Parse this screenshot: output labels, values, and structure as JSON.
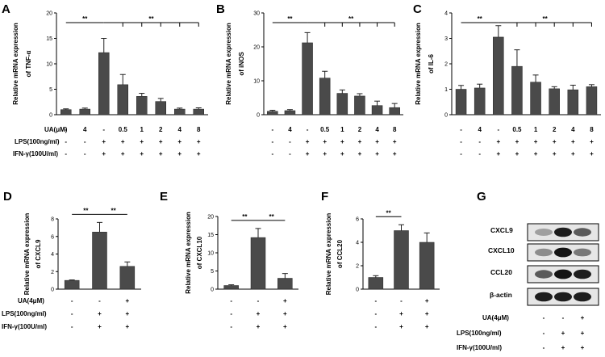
{
  "figure": {
    "panels": [
      "A",
      "B",
      "C",
      "D",
      "E",
      "F",
      "G"
    ],
    "row_labels": {
      "ua": "UA(μM)",
      "ua4": "UA(4μM)",
      "lps": "LPS(100ng/ml)",
      "ifn": "IFN-γ(100U/ml)"
    },
    "top_conditions": {
      "ua": [
        "-",
        "4",
        "-",
        "0.5",
        "1",
        "2",
        "4",
        "8"
      ],
      "lps": [
        "-",
        "-",
        "+",
        "+",
        "+",
        "+",
        "+",
        "+"
      ],
      "ifn": [
        "-",
        "-",
        "+",
        "+",
        "+",
        "+",
        "+",
        "+"
      ]
    },
    "bottom_conditions": {
      "ua": [
        "-",
        "-",
        "+"
      ],
      "lps": [
        "-",
        "+",
        "+"
      ],
      "ifn": [
        "-",
        "+",
        "+"
      ]
    },
    "significance": "**",
    "western_blot": {
      "bands": [
        "CXCL9",
        "CXCL10",
        "CCL20",
        "β-actin"
      ],
      "intensity": [
        [
          0.25,
          0.9,
          0.6
        ],
        [
          0.35,
          0.95,
          0.45
        ],
        [
          0.6,
          0.95,
          0.9
        ],
        [
          0.9,
          0.9,
          0.9
        ]
      ]
    }
  },
  "chart_data": [
    {
      "panel": "A",
      "type": "bar",
      "ylabel": "Relative mRNA expression of TNF-α",
      "ylim": [
        0,
        20
      ],
      "yticks": [
        0,
        5,
        10,
        15,
        20
      ],
      "values": [
        1.0,
        1.1,
        12.2,
        5.9,
        3.6,
        2.6,
        1.1,
        1.1
      ],
      "errors": [
        0.15,
        0.2,
        2.8,
        2.0,
        0.6,
        0.6,
        0.2,
        0.25
      ]
    },
    {
      "panel": "B",
      "type": "bar",
      "ylabel": "Relative mRNA expression of iNOS",
      "ylim": [
        0,
        30
      ],
      "yticks": [
        0,
        10,
        20,
        30
      ],
      "values": [
        1.0,
        1.2,
        21.2,
        10.8,
        6.3,
        5.5,
        2.7,
        2.1
      ],
      "errors": [
        0.3,
        0.3,
        3.0,
        2.0,
        1.0,
        0.7,
        1.3,
        1.2
      ]
    },
    {
      "panel": "C",
      "type": "bar",
      "ylabel": "Relative mRNA expression of IL-6",
      "ylim": [
        0,
        4
      ],
      "yticks": [
        0,
        1,
        2,
        3,
        4
      ],
      "values": [
        1.0,
        1.05,
        3.05,
        1.9,
        1.28,
        1.02,
        0.98,
        1.1
      ],
      "errors": [
        0.15,
        0.15,
        0.45,
        0.65,
        0.28,
        0.08,
        0.18,
        0.08
      ]
    },
    {
      "panel": "D",
      "type": "bar",
      "ylabel": "Relative mRNA expression of CXCL9",
      "ylim": [
        0,
        8
      ],
      "yticks": [
        0,
        2,
        4,
        6,
        8
      ],
      "values": [
        1.0,
        6.5,
        2.6
      ],
      "errors": [
        0.05,
        1.1,
        0.5
      ]
    },
    {
      "panel": "E",
      "type": "bar",
      "ylabel": "Relative mRNA expression of CXCL10",
      "ylim": [
        0,
        20
      ],
      "yticks": [
        0,
        5,
        10,
        15,
        20
      ],
      "values": [
        1.0,
        14.2,
        3.0
      ],
      "errors": [
        0.2,
        2.5,
        1.3
      ]
    },
    {
      "panel": "F",
      "type": "bar",
      "ylabel": "Relative mRNA expression of CCL20",
      "ylim": [
        0,
        6
      ],
      "yticks": [
        0,
        2,
        4,
        6
      ],
      "values": [
        1.0,
        5.0,
        4.0
      ],
      "errors": [
        0.15,
        0.5,
        0.8
      ]
    }
  ]
}
